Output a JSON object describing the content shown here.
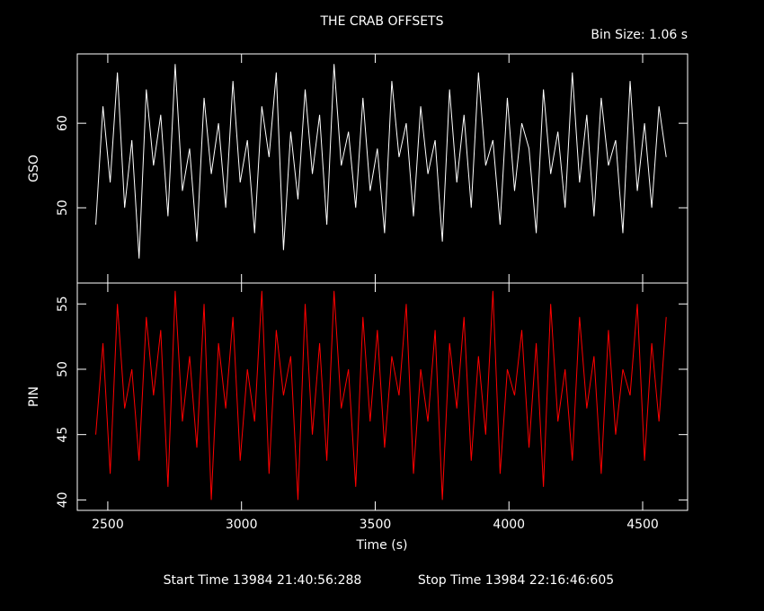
{
  "chart_data": [
    {
      "type": "line",
      "title": "THE CRAB OFFSETS",
      "subtitle": "Bin Size: 1.06 s",
      "ylabel": "GSO",
      "x": [
        2455,
        2482,
        2509,
        2536,
        2563,
        2590,
        2617,
        2644,
        2671,
        2698,
        2725,
        2752,
        2779,
        2806,
        2833,
        2860,
        2887,
        2914,
        2941,
        2968,
        2995,
        3022,
        3049,
        3076,
        3103,
        3130,
        3157,
        3184,
        3211,
        3238,
        3265,
        3292,
        3319,
        3346,
        3373,
        3400,
        3427,
        3454,
        3481,
        3508,
        3535,
        3562,
        3589,
        3616,
        3643,
        3670,
        3697,
        3724,
        3751,
        3778,
        3805,
        3832,
        3859,
        3886,
        3913,
        3940,
        3967,
        3994,
        4021,
        4048,
        4075,
        4102,
        4129,
        4156,
        4183,
        4210,
        4237,
        4264,
        4291,
        4318,
        4345,
        4372,
        4399,
        4426,
        4453,
        4480,
        4507,
        4534,
        4561,
        4588
      ],
      "series": [
        {
          "color": "#ffffff",
          "values": [
            48,
            62,
            53,
            66,
            50,
            58,
            44,
            64,
            55,
            61,
            49,
            67,
            52,
            57,
            46,
            63,
            54,
            60,
            50,
            65,
            53,
            58,
            47,
            62,
            56,
            66,
            45,
            59,
            51,
            64,
            54,
            61,
            48,
            67,
            55,
            59,
            50,
            63,
            52,
            57,
            47,
            65,
            56,
            60,
            49,
            62,
            54,
            58,
            46,
            64,
            53,
            61,
            50,
            66,
            55,
            58,
            48,
            63,
            52,
            60,
            57,
            47,
            64,
            54,
            59,
            50,
            66,
            53,
            61,
            49,
            63,
            55,
            58,
            47,
            65,
            52,
            60,
            50,
            62,
            56
          ]
        }
      ],
      "xlim": [
        2386,
        4668
      ],
      "ylim": [
        41.1,
        68.2
      ],
      "yticks": [
        50,
        60
      ]
    },
    {
      "type": "line",
      "ylabel": "PIN",
      "xlabel": "Time (s)",
      "x": [
        2455,
        2482,
        2509,
        2536,
        2563,
        2590,
        2617,
        2644,
        2671,
        2698,
        2725,
        2752,
        2779,
        2806,
        2833,
        2860,
        2887,
        2914,
        2941,
        2968,
        2995,
        3022,
        3049,
        3076,
        3103,
        3130,
        3157,
        3184,
        3211,
        3238,
        3265,
        3292,
        3319,
        3346,
        3373,
        3400,
        3427,
        3454,
        3481,
        3508,
        3535,
        3562,
        3589,
        3616,
        3643,
        3670,
        3697,
        3724,
        3751,
        3778,
        3805,
        3832,
        3859,
        3886,
        3913,
        3940,
        3967,
        3994,
        4021,
        4048,
        4075,
        4102,
        4129,
        4156,
        4183,
        4210,
        4237,
        4264,
        4291,
        4318,
        4345,
        4372,
        4399,
        4426,
        4453,
        4480,
        4507,
        4534,
        4561,
        4588
      ],
      "series": [
        {
          "color": "#ff0000",
          "values": [
            45,
            52,
            42,
            55,
            47,
            50,
            43,
            54,
            48,
            53,
            41,
            56,
            46,
            51,
            44,
            55,
            40,
            52,
            47,
            54,
            43,
            50,
            46,
            56,
            42,
            53,
            48,
            51,
            40,
            55,
            45,
            52,
            43,
            56,
            47,
            50,
            41,
            54,
            46,
            53,
            44,
            51,
            48,
            55,
            42,
            50,
            46,
            53,
            40,
            52,
            47,
            54,
            43,
            51,
            45,
            56,
            42,
            50,
            48,
            53,
            44,
            52,
            41,
            55,
            46,
            50,
            43,
            54,
            47,
            51,
            42,
            53,
            45,
            50,
            48,
            55,
            43,
            52,
            46,
            54
          ]
        }
      ],
      "xlim": [
        2386,
        4668
      ],
      "ylim": [
        39.2,
        56.6
      ],
      "yticks": [
        40,
        45,
        50,
        55
      ],
      "xticks": [
        2500,
        3000,
        3500,
        4000,
        4500
      ]
    }
  ],
  "footer": {
    "start": "Start Time 13984 21:40:56:288",
    "stop": "Stop Time 13984 22:16:46:605"
  }
}
